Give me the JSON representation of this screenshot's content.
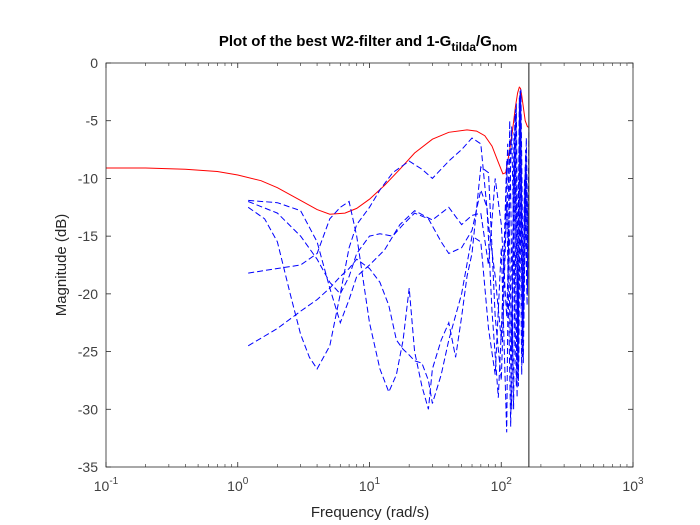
{
  "chart_data": {
    "type": "line",
    "title": {
      "main": "Plot of the best W2-filter and 1-G",
      "sub1": "tilda",
      "slash": "/G",
      "sub2": "nom"
    },
    "xlabel": "Frequency  (rad/s)",
    "ylabel": "Magnitude (dB)",
    "xscale": "log",
    "xlim": [
      0.1,
      1000
    ],
    "ylim": [
      -35,
      0
    ],
    "xticks": [
      {
        "base": "10",
        "exp": "-1",
        "value": 0.1
      },
      {
        "base": "10",
        "exp": "0",
        "value": 1
      },
      {
        "base": "10",
        "exp": "1",
        "value": 10
      },
      {
        "base": "10",
        "exp": "2",
        "value": 100
      },
      {
        "base": "10",
        "exp": "3",
        "value": 1000
      }
    ],
    "yticks": [
      "0",
      "-5",
      "-10",
      "-15",
      "-20",
      "-25",
      "-30",
      "-35"
    ],
    "grid": false,
    "vertical_line": {
      "x": 162,
      "color": "#404040"
    },
    "series": [
      {
        "style": "solid",
        "color": "#ff0000",
        "points": [
          [
            0.1,
            -9.1
          ],
          [
            0.2,
            -9.1
          ],
          [
            0.4,
            -9.2
          ],
          [
            0.7,
            -9.4
          ],
          [
            1.0,
            -9.7
          ],
          [
            1.5,
            -10.2
          ],
          [
            2.0,
            -10.8
          ],
          [
            3.0,
            -11.9
          ],
          [
            4.0,
            -12.7
          ],
          [
            5.0,
            -13.1
          ],
          [
            6.5,
            -13.0
          ],
          [
            8.0,
            -12.6
          ],
          [
            10,
            -11.8
          ],
          [
            13,
            -10.6
          ],
          [
            17,
            -9.2
          ],
          [
            22,
            -7.8
          ],
          [
            30,
            -6.6
          ],
          [
            40,
            -6.0
          ],
          [
            55,
            -5.8
          ],
          [
            65,
            -5.9
          ],
          [
            75,
            -6.3
          ],
          [
            85,
            -7.2
          ],
          [
            95,
            -8.6
          ],
          [
            103,
            -9.6
          ],
          [
            108,
            -9.5
          ],
          [
            115,
            -7.8
          ],
          [
            122,
            -5.8
          ],
          [
            128,
            -3.8
          ],
          [
            133,
            -2.6
          ],
          [
            137,
            -2.1
          ],
          [
            140,
            -2.2
          ],
          [
            143,
            -2.8
          ],
          [
            147,
            -3.8
          ],
          [
            152,
            -5.0
          ],
          [
            158,
            -5.5
          ],
          [
            162,
            -5.6
          ]
        ]
      },
      {
        "style": "dashed",
        "color": "#0000ff",
        "points": [
          [
            1.2,
            -11.9
          ],
          [
            2.0,
            -12.1
          ],
          [
            3.0,
            -12.8
          ],
          [
            4.0,
            -15.5
          ],
          [
            5.0,
            -19.5
          ],
          [
            6.0,
            -22.5
          ],
          [
            7.0,
            -20.5
          ],
          [
            8.0,
            -18.5
          ],
          [
            10,
            -17.5
          ],
          [
            13,
            -16.2
          ],
          [
            17,
            -14.0
          ],
          [
            22,
            -12.8
          ],
          [
            30,
            -13.6
          ],
          [
            40,
            -12.5
          ],
          [
            50,
            -14.0
          ],
          [
            60,
            -13.2
          ],
          [
            70,
            -13.0
          ],
          [
            80,
            -17.5
          ],
          [
            90,
            -10.0
          ],
          [
            100,
            -14.0
          ],
          [
            110,
            -22.0
          ],
          [
            120,
            -5.5
          ],
          [
            130,
            -28.0
          ],
          [
            138,
            -2.8
          ],
          [
            145,
            -25.5
          ],
          [
            152,
            -9.0
          ],
          [
            158,
            -20.0
          ],
          [
            162,
            -6.0
          ]
        ]
      },
      {
        "style": "dashed",
        "color": "#0000ff",
        "points": [
          [
            1.2,
            -12.5
          ],
          [
            1.6,
            -13.5
          ],
          [
            2.0,
            -15.5
          ],
          [
            2.5,
            -20.0
          ],
          [
            3.0,
            -23.5
          ],
          [
            3.5,
            -25.5
          ],
          [
            4.0,
            -26.5
          ],
          [
            5.0,
            -24.5
          ],
          [
            6.0,
            -20.0
          ],
          [
            7.0,
            -16.0
          ],
          [
            8.0,
            -14.0
          ],
          [
            10,
            -12.5
          ],
          [
            12,
            -11.0
          ],
          [
            15,
            -9.5
          ],
          [
            20,
            -8.5
          ],
          [
            25,
            -9.2
          ],
          [
            30,
            -10.0
          ],
          [
            40,
            -8.5
          ],
          [
            50,
            -7.5
          ],
          [
            60,
            -6.5
          ],
          [
            70,
            -7.0
          ],
          [
            80,
            -14.0
          ],
          [
            90,
            -18.5
          ],
          [
            100,
            -24.0
          ],
          [
            110,
            -8.5
          ],
          [
            120,
            -30.0
          ],
          [
            128,
            -4.0
          ],
          [
            135,
            -28.0
          ],
          [
            140,
            -2.5
          ],
          [
            147,
            -26.0
          ],
          [
            154,
            -8.0
          ],
          [
            160,
            -18.0
          ]
        ]
      },
      {
        "style": "dashed",
        "color": "#0000ff",
        "points": [
          [
            1.2,
            -18.2
          ],
          [
            2.0,
            -17.8
          ],
          [
            3.0,
            -17.5
          ],
          [
            4.0,
            -16.5
          ],
          [
            5.0,
            -13.5
          ],
          [
            6.0,
            -12.5
          ],
          [
            7.0,
            -12.0
          ],
          [
            8.0,
            -15.0
          ],
          [
            10,
            -22.5
          ],
          [
            12,
            -26.5
          ],
          [
            14,
            -28.5
          ],
          [
            16,
            -27.0
          ],
          [
            18,
            -24.0
          ],
          [
            20,
            -19.5
          ],
          [
            22,
            -25.0
          ],
          [
            25,
            -28.0
          ],
          [
            28,
            -30.0
          ],
          [
            30,
            -26.5
          ],
          [
            35,
            -24.0
          ],
          [
            40,
            -22.5
          ],
          [
            45,
            -25.5
          ],
          [
            50,
            -22.0
          ],
          [
            55,
            -18.5
          ],
          [
            60,
            -16.5
          ],
          [
            70,
            -9.0
          ],
          [
            80,
            -9.5
          ],
          [
            90,
            -22.0
          ],
          [
            100,
            -27.5
          ],
          [
            110,
            -12.0
          ],
          [
            118,
            -31.5
          ],
          [
            125,
            -6.0
          ],
          [
            132,
            -29.0
          ],
          [
            137,
            -3.0
          ],
          [
            143,
            -27.0
          ],
          [
            150,
            -10.0
          ],
          [
            157,
            -21.0
          ],
          [
            162,
            -12.0
          ]
        ]
      },
      {
        "style": "dashed",
        "color": "#0000ff",
        "points": [
          [
            1.2,
            -24.5
          ],
          [
            2.0,
            -23.0
          ],
          [
            3.0,
            -21.5
          ],
          [
            4.0,
            -20.5
          ],
          [
            5.0,
            -19.5
          ],
          [
            6.0,
            -18.5
          ],
          [
            7.0,
            -17.8
          ],
          [
            8.0,
            -17.0
          ],
          [
            10,
            -17.8
          ],
          [
            12,
            -19.0
          ],
          [
            14,
            -21.0
          ],
          [
            16,
            -24.0
          ],
          [
            18,
            -24.8
          ],
          [
            20,
            -25.3
          ],
          [
            22,
            -25.8
          ],
          [
            25,
            -26.0
          ],
          [
            28,
            -27.5
          ],
          [
            30,
            -29.5
          ],
          [
            35,
            -27.0
          ],
          [
            40,
            -24.0
          ],
          [
            50,
            -20.0
          ],
          [
            60,
            -15.0
          ],
          [
            70,
            -15.5
          ],
          [
            80,
            -23.0
          ],
          [
            90,
            -27.0
          ],
          [
            100,
            -16.0
          ],
          [
            110,
            -32.0
          ],
          [
            116,
            -5.0
          ],
          [
            124,
            -30.0
          ],
          [
            130,
            -3.5
          ],
          [
            136,
            -26.0
          ],
          [
            141,
            -2.3
          ],
          [
            148,
            -23.0
          ],
          [
            155,
            -6.5
          ],
          [
            160,
            -16.0
          ]
        ]
      },
      {
        "style": "dashed",
        "color": "#0000ff",
        "points": [
          [
            1.2,
            -12.0
          ],
          [
            2.0,
            -13.0
          ],
          [
            3.0,
            -15.0
          ],
          [
            4.0,
            -17.0
          ],
          [
            5.0,
            -19.0
          ],
          [
            6.0,
            -20.0
          ],
          [
            7.0,
            -18.5
          ],
          [
            8.0,
            -16.5
          ],
          [
            10,
            -15.0
          ],
          [
            12,
            -14.8
          ],
          [
            15,
            -15.0
          ],
          [
            18,
            -14.0
          ],
          [
            22,
            -13.0
          ],
          [
            28,
            -13.5
          ],
          [
            35,
            -15.5
          ],
          [
            40,
            -16.5
          ],
          [
            50,
            -16.0
          ],
          [
            60,
            -14.5
          ],
          [
            70,
            -11.0
          ],
          [
            78,
            -12.5
          ],
          [
            85,
            -21.5
          ],
          [
            95,
            -29.0
          ],
          [
            105,
            -18.0
          ],
          [
            112,
            -7.0
          ],
          [
            120,
            -25.0
          ],
          [
            127,
            -4.5
          ],
          [
            134,
            -27.5
          ],
          [
            139,
            -2.4
          ],
          [
            146,
            -24.0
          ],
          [
            153,
            -7.5
          ],
          [
            159,
            -19.0
          ]
        ]
      }
    ]
  }
}
